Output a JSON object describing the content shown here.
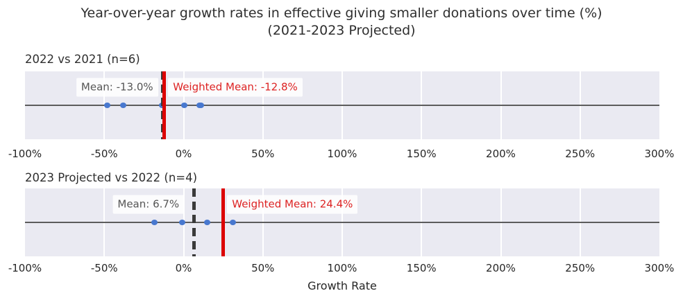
{
  "title": {
    "line1": "Year-over-year growth rates in effective giving smaller donations over time (%)",
    "line2": "(2021-2023 Projected)"
  },
  "colors": {
    "plot_bg": "#eaeaf2",
    "gridline": "#ffffff",
    "axis_line": "#5c5c5c",
    "point": "#4878cf",
    "mean_dash": "#3a3a3a",
    "mean_text": "#555555",
    "weighted_line": "#dc0000",
    "weighted_text": "#dd2222",
    "annot_bg": "rgba(255,255,255,0.85)",
    "text": "#262626"
  },
  "chart_data": {
    "type": "scatter",
    "title": "Year-over-year growth rates in effective giving smaller donations over time (%) (2021-2023 Projected)",
    "xlabel": "Growth Rate",
    "xlim": [
      -100,
      300
    ],
    "grid": true,
    "xtick_values": [
      -100,
      -50,
      0,
      50,
      100,
      150,
      200,
      250,
      300
    ],
    "xtick_labels": [
      "-100%",
      "-50%",
      "0%",
      "50%",
      "100%",
      "150%",
      "200%",
      "250%",
      "300%"
    ],
    "subplots": [
      {
        "title": "2022 vs 2021 (n=6)",
        "points_pct": [
          -48,
          -38,
          -13.5,
          0.5,
          10,
          11
        ],
        "mean_pct": -13.0,
        "weighted_mean_pct": -12.8,
        "mean_label": "Mean: -13.0%",
        "weighted_mean_label": "Weighted Mean: -12.8%"
      },
      {
        "title": "2023 Projected vs 2022 (n=4)",
        "points_pct": [
          -18.2,
          -1,
          15,
          31
        ],
        "mean_pct": 6.7,
        "weighted_mean_pct": 24.4,
        "mean_label": "Mean: 6.7%",
        "weighted_mean_label": "Weighted Mean: 24.4%"
      }
    ]
  }
}
